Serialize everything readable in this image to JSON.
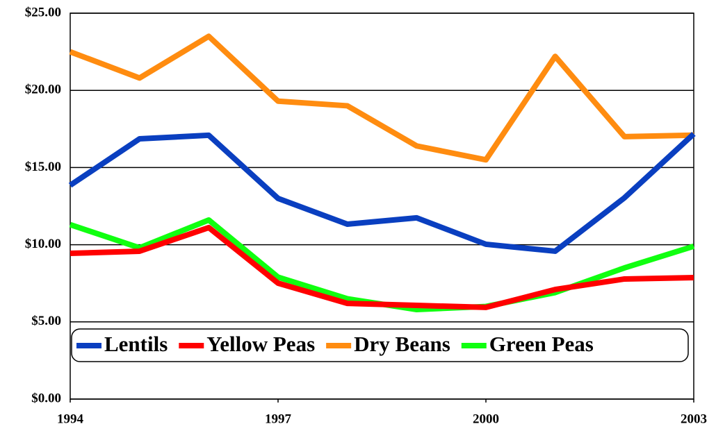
{
  "chart_data": {
    "type": "line",
    "x": [
      1994,
      1995,
      1996,
      1997,
      1998,
      1999,
      2000,
      2001,
      2002,
      2003
    ],
    "xlim": [
      1994,
      2003
    ],
    "xticks": [
      1994,
      1997,
      2000,
      2003
    ],
    "ylim": [
      0,
      25
    ],
    "yticks": [
      {
        "value": 0,
        "label": "$0.00"
      },
      {
        "value": 5,
        "label": "$5.00"
      },
      {
        "value": 10,
        "label": "$10.00"
      },
      {
        "value": 15,
        "label": "$15.00"
      },
      {
        "value": 20,
        "label": "$20.00"
      },
      {
        "value": 25,
        "label": "$25.00"
      }
    ],
    "grid": true,
    "legend": "lower center",
    "series": [
      {
        "name": "Lentils",
        "color": "#0a3fc0",
        "values": [
          13.85,
          16.86,
          17.09,
          13.0,
          11.33,
          11.74,
          10.03,
          9.58,
          13.04,
          17.18
        ]
      },
      {
        "name": "Yellow Peas",
        "color": "#ff0000",
        "values": [
          9.44,
          9.58,
          11.11,
          7.51,
          6.2,
          6.07,
          5.94,
          7.1,
          7.78,
          7.87
        ]
      },
      {
        "name": "Dry Beans",
        "color": "#ff8c10",
        "values": [
          22.5,
          20.8,
          23.5,
          19.3,
          19.0,
          16.4,
          15.5,
          22.2,
          17.0,
          17.1
        ]
      },
      {
        "name": "Green Peas",
        "color": "#10ff10",
        "values": [
          11.3,
          9.8,
          11.6,
          7.9,
          6.5,
          5.8,
          6.0,
          6.9,
          8.5,
          9.9
        ]
      }
    ]
  }
}
